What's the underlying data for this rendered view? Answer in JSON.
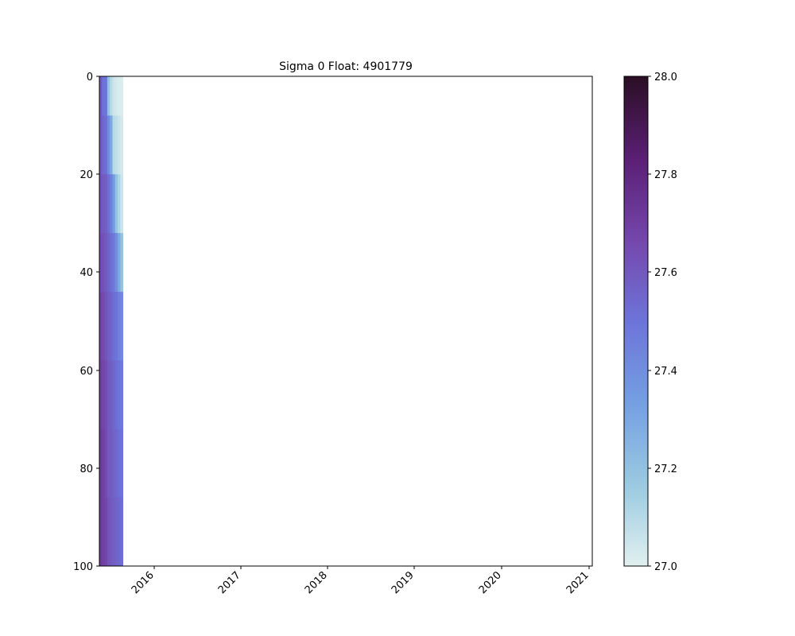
{
  "chart_data": {
    "type": "heatmap",
    "title": "Sigma 0 Float: 4901779",
    "xlabel": "",
    "ylabel": "",
    "x_tick_labels": [
      "2016",
      "2017",
      "2018",
      "2019",
      "2020",
      "2021"
    ],
    "x_tick_years": [
      2016,
      2017,
      2018,
      2019,
      2020,
      2021
    ],
    "xlim_years": [
      2015.37,
      2021.02
    ],
    "y_tick_labels": [
      "0",
      "20",
      "40",
      "60",
      "80",
      "100"
    ],
    "y_tick_values": [
      0,
      20,
      40,
      60,
      80,
      100
    ],
    "ylim": [
      100,
      0
    ],
    "colorbar": {
      "range": [
        27.0,
        28.0
      ],
      "tick_labels": [
        "27.0",
        "27.2",
        "27.4",
        "27.6",
        "27.8",
        "28.0"
      ],
      "tick_values": [
        27.0,
        27.2,
        27.4,
        27.6,
        27.8,
        28.0
      ],
      "colormap_stops": [
        "#e1f0f0",
        "#9ccbe1",
        "#74a0e2",
        "#6d74d9",
        "#7548ad",
        "#5b1f75",
        "#2a0e24"
      ]
    },
    "profiles": [
      {
        "start": 2015.37,
        "end": 2015.4,
        "values": [
          27.6,
          27.6,
          27.62,
          27.65,
          27.68,
          27.7,
          27.72,
          27.72
        ]
      },
      {
        "start": 2015.4,
        "end": 2015.43,
        "values": [
          27.5,
          27.55,
          27.6,
          27.63,
          27.66,
          27.68,
          27.7,
          27.7
        ]
      },
      {
        "start": 2015.43,
        "end": 2015.46,
        "values": [
          27.5,
          27.52,
          27.58,
          27.6,
          27.62,
          27.65,
          27.66,
          27.68
        ]
      },
      {
        "start": 2015.46,
        "end": 2015.49,
        "values": [
          27.2,
          27.4,
          27.52,
          27.56,
          27.58,
          27.6,
          27.6,
          27.62
        ]
      },
      {
        "start": 2015.49,
        "end": 2015.52,
        "values": [
          27.1,
          27.3,
          27.45,
          27.52,
          27.56,
          27.58,
          27.6,
          27.6
        ]
      },
      {
        "start": 2015.52,
        "end": 2015.55,
        "values": [
          27.05,
          27.1,
          27.35,
          27.48,
          27.52,
          27.55,
          27.56,
          27.58
        ]
      },
      {
        "start": 2015.55,
        "end": 2015.58,
        "values": [
          27.03,
          27.08,
          27.2,
          27.4,
          27.5,
          27.52,
          27.55,
          27.56
        ]
      },
      {
        "start": 2015.58,
        "end": 2015.61,
        "values": [
          27.02,
          27.05,
          27.12,
          27.3,
          27.45,
          27.5,
          27.52,
          27.55
        ]
      },
      {
        "start": 2015.61,
        "end": 2015.64,
        "values": [
          27.02,
          27.03,
          27.05,
          27.2,
          27.42,
          27.48,
          27.5,
          27.52
        ]
      }
    ],
    "profile_depths": [
      [
        0,
        8
      ],
      [
        8,
        20
      ],
      [
        20,
        32
      ],
      [
        32,
        44
      ],
      [
        44,
        58
      ],
      [
        58,
        72
      ],
      [
        72,
        86
      ],
      [
        86,
        100
      ]
    ]
  }
}
